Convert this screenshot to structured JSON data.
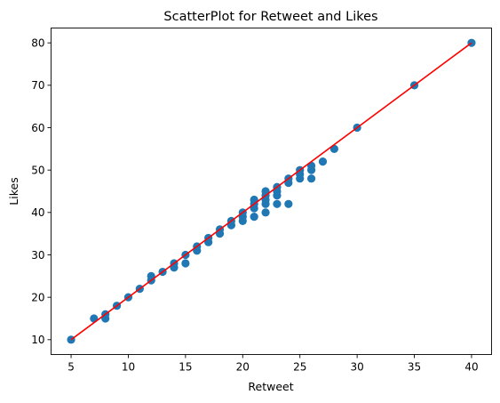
{
  "chart_data": {
    "type": "scatter",
    "title": "ScatterPlot for Retweet and Likes",
    "xlabel": "Retweet",
    "ylabel": "Likes",
    "xlim": [
      3.25,
      41.75
    ],
    "ylim": [
      6.5,
      83.5
    ],
    "xticks": [
      5,
      10,
      15,
      20,
      25,
      30,
      35,
      40
    ],
    "yticks": [
      10,
      20,
      30,
      40,
      50,
      60,
      70,
      80
    ],
    "grid": false,
    "point_color": "#1f77b4",
    "line_color": "#ff0000",
    "series": [
      {
        "points": [
          [
            5,
            10
          ],
          [
            7,
            15
          ],
          [
            8,
            15
          ],
          [
            8,
            16
          ],
          [
            9,
            18
          ],
          [
            10,
            20
          ],
          [
            11,
            22
          ],
          [
            12,
            24
          ],
          [
            12,
            25
          ],
          [
            13,
            26
          ],
          [
            14,
            27
          ],
          [
            14,
            28
          ],
          [
            15,
            28
          ],
          [
            15,
            30
          ],
          [
            16,
            31
          ],
          [
            16,
            32
          ],
          [
            17,
            33
          ],
          [
            17,
            34
          ],
          [
            18,
            35
          ],
          [
            18,
            36
          ],
          [
            19,
            37
          ],
          [
            19,
            38
          ],
          [
            20,
            38
          ],
          [
            20,
            39
          ],
          [
            20,
            40
          ],
          [
            21,
            39
          ],
          [
            21,
            41
          ],
          [
            21,
            42
          ],
          [
            21,
            43
          ],
          [
            22,
            40
          ],
          [
            22,
            42
          ],
          [
            22,
            43
          ],
          [
            22,
            44
          ],
          [
            22,
            45
          ],
          [
            23,
            42
          ],
          [
            23,
            44
          ],
          [
            23,
            45
          ],
          [
            23,
            46
          ],
          [
            24,
            42
          ],
          [
            24,
            47
          ],
          [
            24,
            48
          ],
          [
            25,
            48
          ],
          [
            25,
            49
          ],
          [
            25,
            50
          ],
          [
            26,
            48
          ],
          [
            26,
            50
          ],
          [
            26,
            51
          ],
          [
            27,
            52
          ],
          [
            28,
            55
          ],
          [
            30,
            60
          ],
          [
            35,
            70
          ],
          [
            40,
            80
          ]
        ]
      }
    ],
    "fit_line": {
      "slope": 2,
      "intercept": 0,
      "x_range": [
        5,
        40
      ]
    }
  }
}
